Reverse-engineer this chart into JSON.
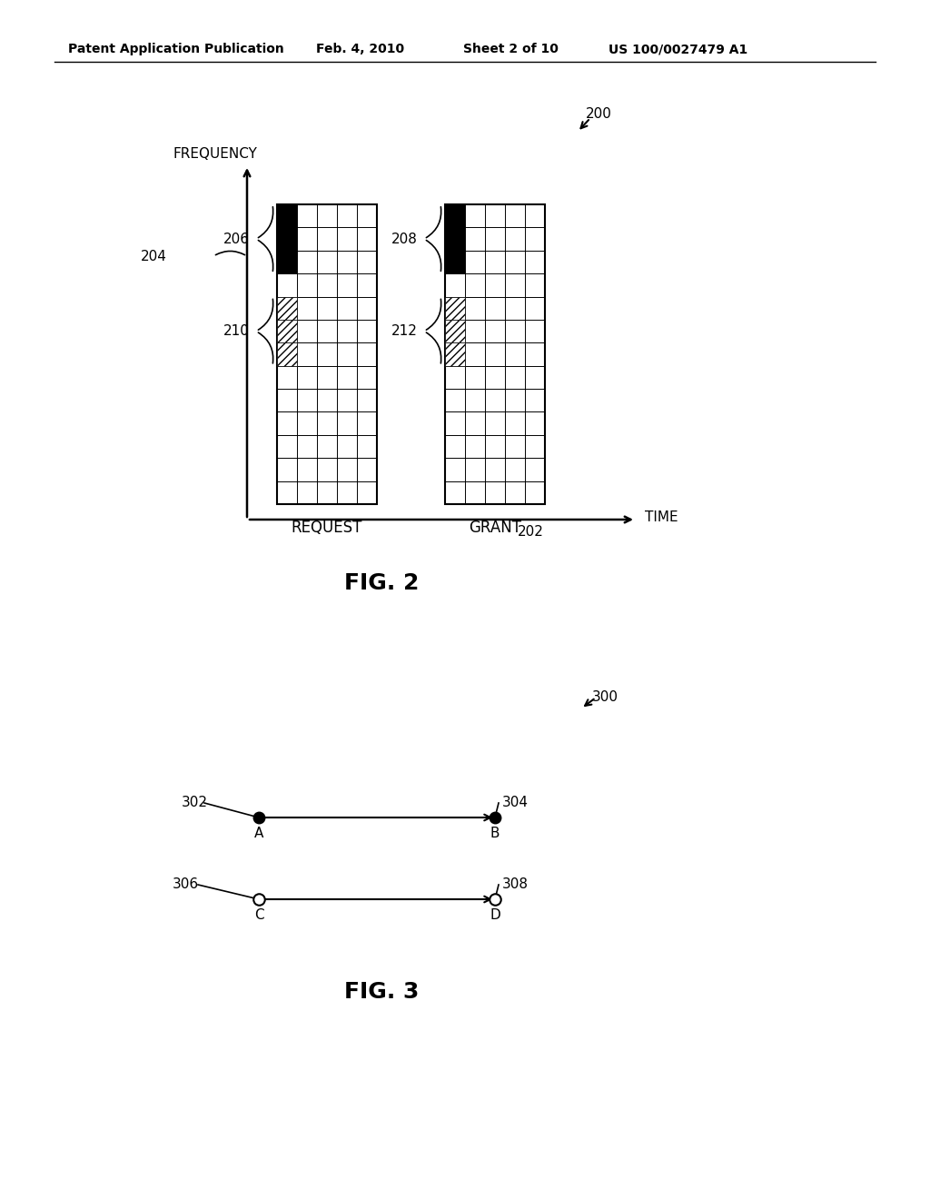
{
  "bg_color": "#ffffff",
  "header_text1": "Patent Application Publication",
  "header_text2": "Feb. 4, 2010",
  "header_text3": "Sheet 2 of 10",
  "header_text4": "US 100/0027479 A1",
  "fig2_label": "FIG. 2",
  "fig3_label": "FIG. 3",
  "label_200": "200",
  "label_202": "202",
  "label_204": "204",
  "label_206": "206",
  "label_208": "208",
  "label_210": "210",
  "label_212": "212",
  "label_300": "300",
  "label_302": "302",
  "label_304": "304",
  "label_306": "306",
  "label_308": "308",
  "freq_label": "FREQUENCY",
  "time_label": "TIME",
  "request_label": "REQUEST",
  "grant_label": "GRANT",
  "label_A": "A",
  "label_B": "B",
  "label_C": "C",
  "label_D": "D"
}
